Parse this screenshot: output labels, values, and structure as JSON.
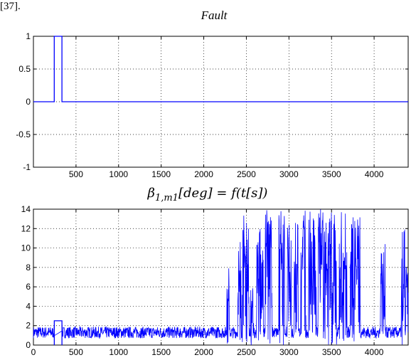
{
  "header_fragment": "[37].",
  "chart_data": [
    {
      "type": "line",
      "title": "Fault",
      "xlabel": "",
      "ylabel": "",
      "xlim": [
        0,
        4400
      ],
      "ylim": [
        -1,
        1
      ],
      "grid": true,
      "line_color": "#0000ff",
      "x_ticks": [
        500,
        1000,
        1500,
        2000,
        2500,
        3000,
        3500,
        4000
      ],
      "y_ticks": [
        -1,
        -0.5,
        0,
        0.5,
        1
      ],
      "x_tick_labels": [
        "500",
        "1000",
        "1500",
        "2000",
        "2500",
        "3000",
        "3500",
        "4000"
      ],
      "y_tick_labels": [
        "-1",
        "-0.5",
        "0",
        "0.5",
        "1"
      ],
      "x": [
        0,
        245,
        245,
        335,
        335,
        4400
      ],
      "y": [
        0,
        0,
        1,
        1,
        0,
        0
      ]
    },
    {
      "type": "line",
      "title": "β1,m1[deg] = f(t[s])",
      "title_parts": {
        "pre": "β",
        "sub": "1,m1",
        "post": "[deg] = f(t[s])"
      },
      "xlabel": "",
      "ylabel": "",
      "xlim": [
        0,
        4400
      ],
      "ylim": [
        0,
        14
      ],
      "grid": true,
      "line_color": "#0000ff",
      "x_ticks": [
        0,
        500,
        1000,
        1500,
        2000,
        2500,
        3000,
        3500,
        4000
      ],
      "y_ticks": [
        0,
        2,
        4,
        6,
        8,
        10,
        12,
        14
      ],
      "x_tick_labels": [
        "0",
        "500",
        "1000",
        "1500",
        "2000",
        "2500",
        "3000",
        "3500",
        "4000"
      ],
      "y_tick_labels": [
        "0",
        "2",
        "4",
        "6",
        "8",
        "10",
        "12",
        "14"
      ],
      "baseline_noise": {
        "min": 0.7,
        "max": 1.9,
        "typical": 1.3
      },
      "step_pulse": {
        "x_start": 245,
        "x_end": 335,
        "value": 2.5
      },
      "bursts": [
        {
          "x_start": 2270,
          "x_end": 2300,
          "peak": 8
        },
        {
          "x_start": 2400,
          "x_end": 2440,
          "peak": 13.5
        },
        {
          "x_start": 2450,
          "x_end": 2530,
          "peak": 14
        },
        {
          "x_start": 2550,
          "x_end": 2590,
          "peak": 6
        },
        {
          "x_start": 2620,
          "x_end": 2700,
          "peak": 12
        },
        {
          "x_start": 2720,
          "x_end": 2800,
          "peak": 14
        },
        {
          "x_start": 2880,
          "x_end": 2950,
          "peak": 14
        },
        {
          "x_start": 2980,
          "x_end": 3030,
          "peak": 12.5
        },
        {
          "x_start": 3060,
          "x_end": 3110,
          "peak": 13
        },
        {
          "x_start": 3140,
          "x_end": 3200,
          "peak": 14
        },
        {
          "x_start": 3230,
          "x_end": 3320,
          "peak": 14
        },
        {
          "x_start": 3340,
          "x_end": 3560,
          "peak": 14
        },
        {
          "x_start": 3590,
          "x_end": 3680,
          "peak": 14
        },
        {
          "x_start": 3720,
          "x_end": 3840,
          "peak": 14
        },
        {
          "x_start": 4070,
          "x_end": 4130,
          "peak": 10.5
        },
        {
          "x_start": 4320,
          "x_end": 4360,
          "peak": 12.5
        },
        {
          "x_start": 4370,
          "x_end": 4400,
          "peak": 9.5
        }
      ]
    }
  ]
}
